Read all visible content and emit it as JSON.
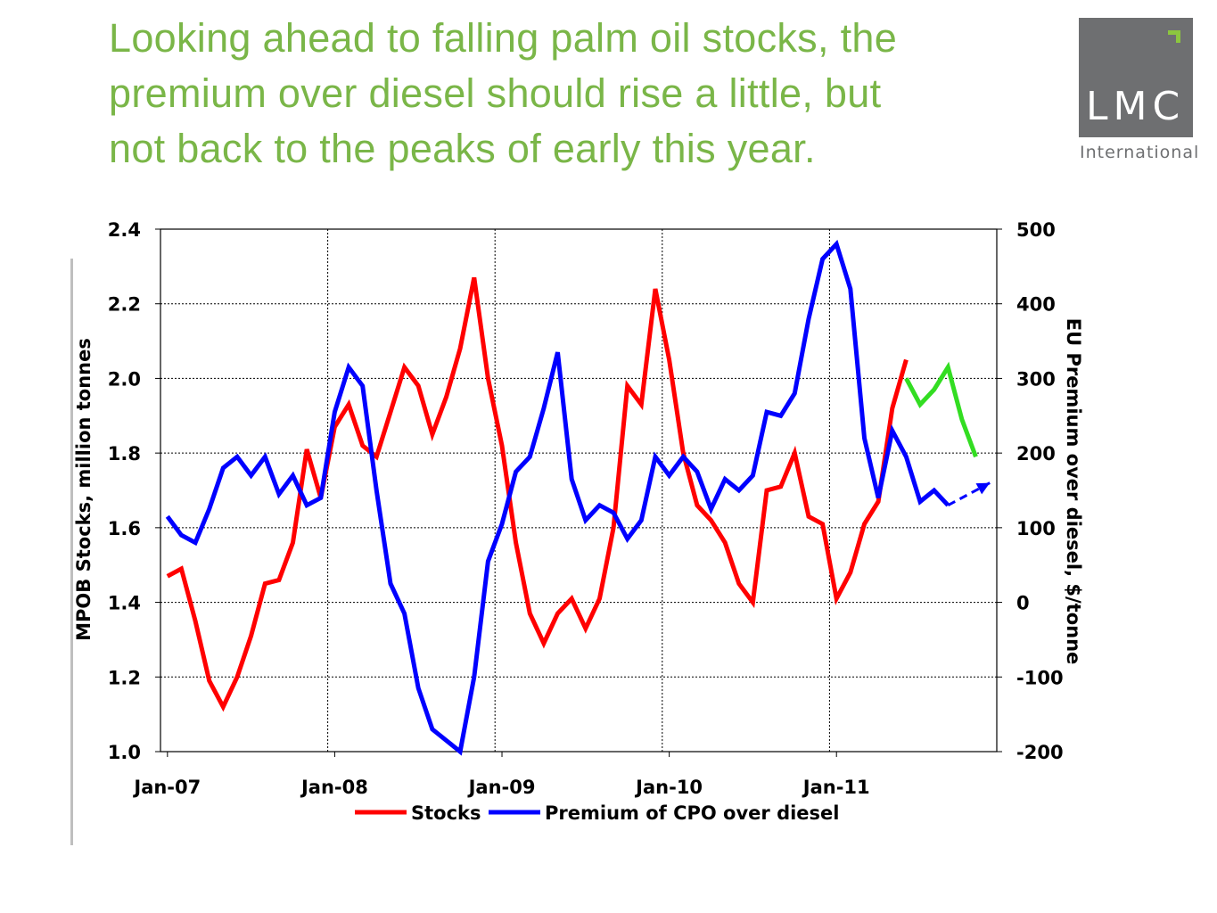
{
  "headline": {
    "line1": "Looking ahead to falling palm oil stocks, the",
    "line2": "premium over diesel should rise a little, but",
    "line3": "not back to the peaks of early this year."
  },
  "logo": {
    "text": "LMC",
    "subtext": "International"
  },
  "colors": {
    "headline": "#7ab648",
    "stocks": "#ff0000",
    "premium": "#0000ff",
    "forecast_stocks": "#33dd22",
    "forecast_premium": "#0000ff",
    "logo_bg": "#6e6f71",
    "logo_accent": "#8cc63f"
  },
  "chart_data": {
    "type": "line",
    "title": "",
    "ylabel": "MPOB Stocks, million tonnes",
    "y2label": "EU Premium over diesel, $/tonne",
    "ylim": [
      1.0,
      2.4
    ],
    "y2lim": [
      -200,
      500
    ],
    "yticks": [
      "1.0",
      "1.2",
      "1.4",
      "1.6",
      "1.8",
      "2.0",
      "2.2",
      "2.4"
    ],
    "y2ticks": [
      "-200",
      "-100",
      "0",
      "100",
      "200",
      "300",
      "400",
      "500"
    ],
    "x_tick_labels": [
      "Jan-07",
      "Jan-08",
      "Jan-09",
      "Jan-10",
      "Jan-11"
    ],
    "x_tick_months": [
      0,
      12,
      24,
      36,
      48
    ],
    "xlim_months": [
      -0.5,
      59.5
    ],
    "grid": true,
    "legend_position": "bottom",
    "series": [
      {
        "name": "Stocks",
        "axis": "left",
        "x_months": [
          0,
          1,
          2,
          3,
          4,
          5,
          6,
          7,
          8,
          9,
          10,
          11,
          12,
          13,
          14,
          15,
          16,
          17,
          18,
          19,
          20,
          21,
          22,
          23,
          24,
          25,
          26,
          27,
          28,
          29,
          30,
          31,
          32,
          33,
          34,
          35,
          36,
          37,
          38,
          39,
          40,
          41,
          42,
          43,
          44,
          45,
          46,
          47,
          48,
          49,
          50,
          51,
          52,
          53
        ],
        "values": [
          1.47,
          1.49,
          1.35,
          1.19,
          1.12,
          1.2,
          1.31,
          1.45,
          1.46,
          1.56,
          1.81,
          1.68,
          1.87,
          1.93,
          1.82,
          1.79,
          1.91,
          2.03,
          1.98,
          1.85,
          1.95,
          2.08,
          2.27,
          2.0,
          1.82,
          1.56,
          1.37,
          1.29,
          1.37,
          1.41,
          1.33,
          1.41,
          1.6,
          1.98,
          1.93,
          2.24,
          2.05,
          1.8,
          1.66,
          1.62,
          1.56,
          1.45,
          1.4,
          1.7,
          1.71,
          1.8,
          1.63,
          1.61,
          1.41,
          1.48,
          1.61,
          1.67,
          1.92,
          2.05
        ]
      },
      {
        "name": "Premium of CPO over diesel",
        "axis": "right",
        "x_months": [
          0,
          1,
          2,
          3,
          4,
          5,
          6,
          7,
          8,
          9,
          10,
          11,
          12,
          13,
          14,
          15,
          16,
          17,
          18,
          19,
          20,
          21,
          22,
          23,
          24,
          25,
          26,
          27,
          28,
          29,
          30,
          31,
          32,
          33,
          34,
          35,
          36,
          37,
          38,
          39,
          40,
          41,
          42,
          43,
          44,
          45,
          46,
          47,
          48,
          49,
          50,
          51,
          52,
          53,
          54,
          55,
          56
        ],
        "values": [
          115,
          90,
          80,
          125,
          180,
          195,
          170,
          195,
          145,
          170,
          130,
          140,
          255,
          315,
          290,
          150,
          25,
          -15,
          -115,
          -170,
          -185,
          -200,
          -100,
          55,
          105,
          175,
          195,
          260,
          335,
          165,
          110,
          130,
          120,
          85,
          110,
          195,
          170,
          195,
          175,
          125,
          165,
          150,
          170,
          255,
          250,
          280,
          380,
          460,
          480,
          420,
          220,
          140,
          230,
          195,
          135,
          150,
          130
        ]
      },
      {
        "name": "",
        "axis": "left",
        "style": "forecast",
        "x_months": [
          53,
          54,
          55,
          56,
          57,
          58
        ],
        "values": [
          2.0,
          1.93,
          1.97,
          2.03,
          1.89,
          1.79
        ]
      },
      {
        "name": "",
        "axis": "right",
        "style": "forecast-dashed",
        "x_months": [
          56,
          59
        ],
        "values": [
          130,
          160
        ]
      }
    ]
  }
}
